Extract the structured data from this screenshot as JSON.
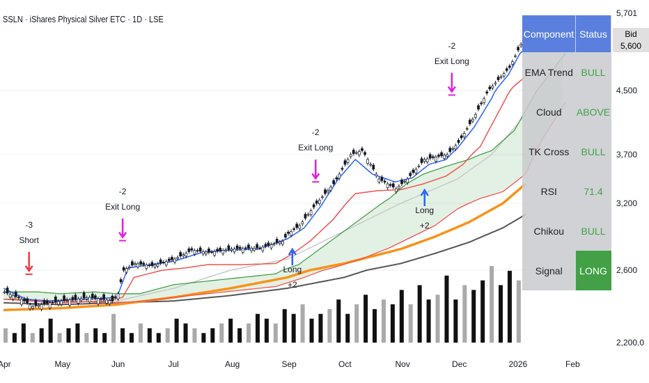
{
  "header": {
    "title": "SSLN · iShares Physical Silver ETC · 1D · LSE"
  },
  "table": {
    "headers": [
      "Component",
      "Status"
    ],
    "rows": [
      {
        "label": "EMA Trend",
        "value": "BULL"
      },
      {
        "label": "Cloud",
        "value": "ABOVE"
      },
      {
        "label": "TK Cross",
        "value": "BULL"
      },
      {
        "label": "RSI",
        "value": "71.4"
      },
      {
        "label": "Chikou",
        "value": "BULL"
      },
      {
        "label": "Signal",
        "value": "LONG"
      }
    ]
  },
  "quote": {
    "bid_label": "Bid",
    "last_price": "5,600"
  },
  "chart_data": {
    "type": "line",
    "y_ticks": [
      "5,701",
      "4,500",
      "3,700",
      "3,200",
      "2,600",
      "2,200.0"
    ],
    "x_ticks": [
      "Apr",
      "May",
      "Jun",
      "Jul",
      "Aug",
      "Sep",
      "Oct",
      "Nov",
      "Dec",
      "2026",
      "Feb"
    ],
    "colors": {
      "price": "#131722",
      "tenkan": "#2962ff",
      "kijun": "#ef5350",
      "cloud_a": "#43a047",
      "cloud_b": "#ef5350",
      "sma": "#c8c8c8",
      "ema": "#f7931a",
      "ema_long": "#555555",
      "exit": "#e020e0",
      "short": "#f23645",
      "long_up": "#2962ff"
    },
    "series": {
      "price": [
        [
          0,
          2480
        ],
        [
          0.3,
          2440
        ],
        [
          0.5,
          2400
        ],
        [
          0.8,
          2420
        ],
        [
          1,
          2430
        ],
        [
          1.5,
          2450
        ],
        [
          1.9,
          2430
        ],
        [
          2,
          2470
        ],
        [
          2.1,
          2600
        ],
        [
          2.3,
          2660
        ],
        [
          2.6,
          2640
        ],
        [
          3,
          2700
        ],
        [
          3.3,
          2780
        ],
        [
          3.6,
          2760
        ],
        [
          4,
          2790
        ],
        [
          4.5,
          2800
        ],
        [
          4.9,
          2860
        ],
        [
          5,
          2930
        ],
        [
          5.2,
          3000
        ],
        [
          5.5,
          3200
        ],
        [
          5.8,
          3400
        ],
        [
          6.1,
          3700
        ],
        [
          6.3,
          3750
        ],
        [
          6.6,
          3450
        ],
        [
          6.9,
          3350
        ],
        [
          7.1,
          3450
        ],
        [
          7.4,
          3650
        ],
        [
          7.8,
          3700
        ],
        [
          8,
          3850
        ],
        [
          8.3,
          4200
        ],
        [
          8.6,
          4600
        ],
        [
          8.9,
          5000
        ],
        [
          9.1,
          5500
        ],
        [
          9.2,
          5600
        ]
      ],
      "tenkan": [
        [
          0,
          2500
        ],
        [
          0.4,
          2440
        ],
        [
          0.8,
          2430
        ],
        [
          1.5,
          2440
        ],
        [
          2,
          2450
        ],
        [
          2.2,
          2620
        ],
        [
          2.6,
          2650
        ],
        [
          3,
          2680
        ],
        [
          3.5,
          2760
        ],
        [
          4,
          2780
        ],
        [
          4.5,
          2790
        ],
        [
          5,
          2880
        ],
        [
          5.3,
          2980
        ],
        [
          5.6,
          3180
        ],
        [
          5.9,
          3450
        ],
        [
          6.2,
          3650
        ],
        [
          6.5,
          3500
        ],
        [
          6.9,
          3420
        ],
        [
          7.2,
          3460
        ],
        [
          7.5,
          3600
        ],
        [
          7.8,
          3650
        ],
        [
          8,
          3780
        ],
        [
          8.3,
          4050
        ],
        [
          8.6,
          4400
        ],
        [
          8.9,
          4850
        ],
        [
          9.1,
          5300
        ],
        [
          9.2,
          5400
        ]
      ],
      "kijun": [
        [
          0,
          2440
        ],
        [
          0.5,
          2430
        ],
        [
          1,
          2420
        ],
        [
          1.8,
          2430
        ],
        [
          2.1,
          2450
        ],
        [
          2.3,
          2560
        ],
        [
          2.8,
          2600
        ],
        [
          3.2,
          2620
        ],
        [
          3.6,
          2650
        ],
        [
          4.2,
          2650
        ],
        [
          4.8,
          2660
        ],
        [
          5.1,
          2750
        ],
        [
          5.4,
          2860
        ],
        [
          5.8,
          3050
        ],
        [
          6.2,
          3300
        ],
        [
          6.6,
          3330
        ],
        [
          7,
          3340
        ],
        [
          7.4,
          3400
        ],
        [
          7.8,
          3480
        ],
        [
          8.1,
          3600
        ],
        [
          8.4,
          3800
        ],
        [
          8.7,
          4200
        ],
        [
          9,
          4600
        ],
        [
          9.2,
          4800
        ]
      ],
      "cloud_a": [
        [
          0,
          2480
        ],
        [
          0.6,
          2480
        ],
        [
          1,
          2470
        ],
        [
          1.6,
          2480
        ],
        [
          2,
          2470
        ],
        [
          2.4,
          2470
        ],
        [
          3,
          2520
        ],
        [
          3.6,
          2540
        ],
        [
          4.2,
          2560
        ],
        [
          4.8,
          2580
        ],
        [
          5.2,
          2650
        ],
        [
          5.6,
          2800
        ],
        [
          6,
          2950
        ],
        [
          6.4,
          3100
        ],
        [
          6.8,
          3250
        ],
        [
          7.1,
          3400
        ],
        [
          7.4,
          3500
        ],
        [
          7.8,
          3580
        ],
        [
          8.2,
          3650
        ],
        [
          8.6,
          3750
        ],
        [
          9,
          4000
        ],
        [
          9.4,
          4500
        ],
        [
          9.9,
          5300
        ]
      ],
      "cloud_b": [
        [
          0,
          2440
        ],
        [
          1,
          2430
        ],
        [
          2,
          2420
        ],
        [
          2.5,
          2430
        ],
        [
          3,
          2450
        ],
        [
          3.6,
          2470
        ],
        [
          4.2,
          2490
        ],
        [
          4.8,
          2510
        ],
        [
          5.3,
          2560
        ],
        [
          5.8,
          2620
        ],
        [
          6.3,
          2700
        ],
        [
          6.8,
          2800
        ],
        [
          7.2,
          2900
        ],
        [
          7.6,
          3000
        ],
        [
          8,
          3150
        ],
        [
          8.4,
          3250
        ],
        [
          8.8,
          3320
        ],
        [
          9.2,
          3500
        ],
        [
          9.5,
          3900
        ],
        [
          9.9,
          4350
        ]
      ],
      "sma": [
        [
          0,
          2440
        ],
        [
          1,
          2420
        ],
        [
          2,
          2430
        ],
        [
          3,
          2500
        ],
        [
          4,
          2600
        ],
        [
          5,
          2700
        ],
        [
          5.6,
          2850
        ],
        [
          6.2,
          3000
        ],
        [
          6.8,
          3150
        ],
        [
          7.4,
          3300
        ],
        [
          8,
          3450
        ],
        [
          8.6,
          3700
        ],
        [
          9.2,
          4200
        ]
      ],
      "ema": [
        [
          0,
          2380
        ],
        [
          1,
          2390
        ],
        [
          2,
          2410
        ],
        [
          3,
          2450
        ],
        [
          4,
          2500
        ],
        [
          5,
          2560
        ],
        [
          6,
          2660
        ],
        [
          7,
          2790
        ],
        [
          7.6,
          2900
        ],
        [
          8.2,
          3030
        ],
        [
          8.8,
          3200
        ],
        [
          9.2,
          3400
        ]
      ],
      "ema_long": [
        [
          0,
          2420
        ],
        [
          1,
          2410
        ],
        [
          2,
          2420
        ],
        [
          3,
          2430
        ],
        [
          4,
          2460
        ],
        [
          5,
          2500
        ],
        [
          6,
          2560
        ],
        [
          7,
          2660
        ],
        [
          7.6,
          2750
        ],
        [
          8.2,
          2850
        ],
        [
          8.8,
          2980
        ],
        [
          9.2,
          3100
        ]
      ]
    },
    "volume": [
      3,
      2,
      4,
      2,
      3,
      5,
      2,
      3,
      4,
      2,
      3,
      2,
      6,
      3,
      2,
      4,
      3,
      2,
      3,
      5,
      4,
      3,
      2,
      3,
      4,
      5,
      3,
      4,
      6,
      5,
      4,
      7,
      6,
      8,
      5,
      6,
      7,
      9,
      6,
      8,
      10,
      7,
      9,
      8,
      11,
      8,
      12,
      9,
      10,
      14,
      9,
      12,
      11,
      13,
      16,
      12,
      15,
      13
    ],
    "annotations": [
      {
        "m": 0.45,
        "price_anchor": 2470,
        "lines": [
          "-3",
          "Short"
        ],
        "kind": "short"
      },
      {
        "m": 2.1,
        "price_anchor": 2690,
        "lines": [
          "-2",
          "Exit Long"
        ],
        "kind": "exit"
      },
      {
        "m": 5.5,
        "price_anchor": 3220,
        "lines": [
          "-2",
          "Exit Long"
        ],
        "kind": "exit"
      },
      {
        "m": 7.9,
        "price_anchor": 4200,
        "lines": [
          "-2",
          "Exit Long"
        ],
        "kind": "exit"
      },
      {
        "m": 5.09,
        "price_anchor": 2800,
        "lines": [
          "Long",
          "+2"
        ],
        "kind": "long"
      },
      {
        "m": 7.42,
        "price_anchor": 3350,
        "lines": [
          "Long",
          "+2"
        ],
        "kind": "long"
      }
    ]
  }
}
